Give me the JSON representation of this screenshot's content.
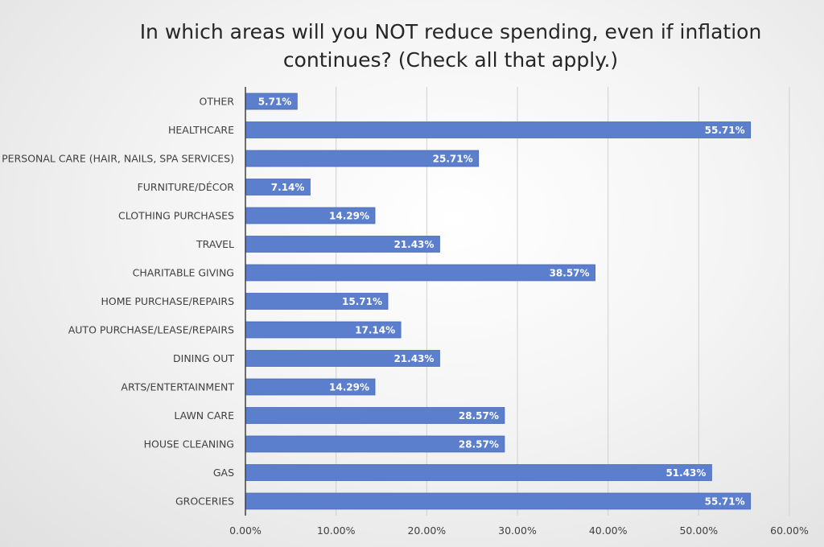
{
  "chart_data": {
    "type": "bar",
    "orientation": "horizontal",
    "title": "In which areas will you NOT reduce spending, even if inflation continues? (Check all that apply.)",
    "categories": [
      "OTHER",
      "HEALTHCARE",
      "PERSONAL CARE (HAIR, NAILS, SPA SERVICES)",
      "FURNITURE/DÉCOR",
      "CLOTHING PURCHASES",
      "TRAVEL",
      "CHARITABLE GIVING",
      "HOME PURCHASE/REPAIRS",
      "AUTO PURCHASE/LEASE/REPAIRS",
      "DINING OUT",
      "ARTS/ENTERTAINMENT",
      "LAWN CARE",
      "HOUSE CLEANING",
      "GAS",
      "GROCERIES"
    ],
    "values": [
      5.71,
      55.71,
      25.71,
      7.14,
      14.29,
      21.43,
      38.57,
      15.71,
      17.14,
      21.43,
      14.29,
      28.57,
      28.57,
      51.43,
      55.71
    ],
    "data_labels": [
      "5.71%",
      "55.71%",
      "25.71%",
      "7.14%",
      "14.29%",
      "21.43%",
      "38.57%",
      "15.71%",
      "17.14%",
      "21.43%",
      "14.29%",
      "28.57%",
      "28.57%",
      "51.43%",
      "55.71%"
    ],
    "xlim": [
      0,
      60
    ],
    "xticks": [
      0,
      10,
      20,
      30,
      40,
      50,
      60
    ],
    "xtick_labels": [
      "0.00%",
      "10.00%",
      "20.00%",
      "30.00%",
      "40.00%",
      "50.00%",
      "60.00%"
    ],
    "xlabel": "",
    "ylabel": "",
    "grid": "vertical",
    "legend": "none",
    "colors": {
      "bar": "#5b7fcc",
      "bar_border": "#4a6bb5",
      "gridline": "#d0d0d0",
      "axis": "#404040",
      "data_label": "#ffffff"
    }
  }
}
